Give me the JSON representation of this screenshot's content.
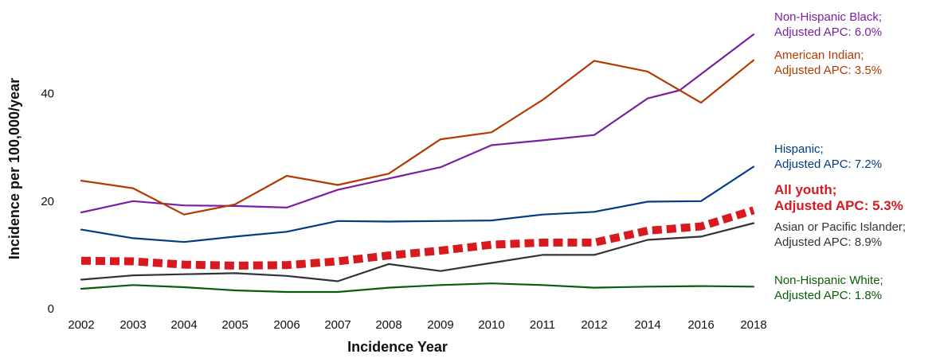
{
  "chart_data": {
    "type": "line",
    "xlabel": "Incidence Year",
    "ylabel": "Incidence per 100,000/year",
    "ylim": [
      0,
      55
    ],
    "yticks": [
      0,
      20,
      40
    ],
    "ytick_labels": [
      "0",
      "20",
      "40"
    ],
    "categories": [
      "2002",
      "2003",
      "2004",
      "2005",
      "2006",
      "2007",
      "2008",
      "2009",
      "2010",
      "2011",
      "2012",
      "2014",
      "2016",
      "2018"
    ],
    "grid": false,
    "legend": "inline labels at right end of each line",
    "series": [
      {
        "name": "Non-Hispanic Black",
        "label_lines": [
          "Non-Hispanic Black;",
          "Adjusted APC: 6.0%"
        ],
        "color": "#7b1fa2",
        "style": "solid",
        "x": [
          2002,
          2003,
          2004,
          2005,
          2006,
          2007,
          2008,
          2009,
          2010,
          2011,
          2012,
          2014,
          2015.2,
          2018
        ],
        "values": [
          17.9,
          20,
          19.2,
          19.1,
          18.8,
          22.1,
          24.2,
          26.3,
          30.4,
          31.3,
          32.3,
          39.1,
          40.6,
          51
        ]
      },
      {
        "name": "American Indian",
        "label_lines": [
          "American Indian;",
          "Adjusted APC: 3.5%"
        ],
        "color": "#b33a00",
        "style": "solid",
        "x": [
          2002,
          2003,
          2004,
          2005,
          2006,
          2007,
          2008,
          2009,
          2010,
          2011,
          2012,
          2014,
          2016,
          2018
        ],
        "values": [
          23.8,
          22.4,
          17.5,
          19.4,
          24.7,
          23,
          25.1,
          31.5,
          32.8,
          38.8,
          46.1,
          44.1,
          38.3,
          46.2
        ]
      },
      {
        "name": "Hispanic",
        "label_lines": [
          "Hispanic;",
          "Adjusted APC: 7.2%"
        ],
        "color": "#003d82",
        "style": "solid",
        "x": [
          2002,
          2003,
          2004,
          2005,
          2006,
          2007,
          2008,
          2009,
          2010,
          2011,
          2012,
          2014,
          2016,
          2018
        ],
        "values": [
          14.7,
          13.1,
          12.4,
          13.4,
          14.3,
          16.3,
          16.2,
          16.3,
          16.4,
          17.5,
          18,
          19.9,
          20,
          26.4
        ]
      },
      {
        "name": "All youth",
        "label_lines": [
          "All youth;",
          "Adjusted APC: 5.3%"
        ],
        "color": "#d71920",
        "style": "dashed-bold",
        "x": [
          2002,
          2003,
          2004,
          2005,
          2006,
          2007,
          2008,
          2009,
          2010,
          2011,
          2012,
          2014,
          2016,
          2018
        ],
        "values": [
          8.9,
          8.8,
          8.2,
          8,
          8.1,
          8.8,
          9.9,
          10.8,
          11.9,
          12.3,
          12.3,
          14.5,
          15.3,
          18.3
        ]
      },
      {
        "name": "Asian or Pacific Islander",
        "label_lines": [
          "Asian or Pacific Islander;",
          "Adjusted APC: 8.9%"
        ],
        "color": "#333333",
        "style": "solid",
        "x": [
          2002,
          2003,
          2004,
          2005,
          2006,
          2007,
          2008,
          2009,
          2010,
          2011,
          2012,
          2014,
          2016,
          2018
        ],
        "values": [
          5.4,
          6.2,
          6.4,
          6.6,
          6.1,
          5.1,
          8.3,
          7,
          8.5,
          10,
          10,
          12.8,
          13.4,
          15.9
        ]
      },
      {
        "name": "Non-Hispanic White",
        "label_lines": [
          "Non-Hispanic White;",
          "Adjusted APC: 1.8%"
        ],
        "color": "#0a5c0a",
        "style": "solid",
        "x": [
          2002,
          2003,
          2004,
          2005,
          2006,
          2007,
          2008,
          2009,
          2010,
          2011,
          2012,
          2014,
          2016,
          2018
        ],
        "values": [
          3.7,
          4.4,
          4,
          3.4,
          3.1,
          3.1,
          3.9,
          4.4,
          4.7,
          4.4,
          3.9,
          4.1,
          4.2,
          4.1
        ]
      }
    ]
  }
}
